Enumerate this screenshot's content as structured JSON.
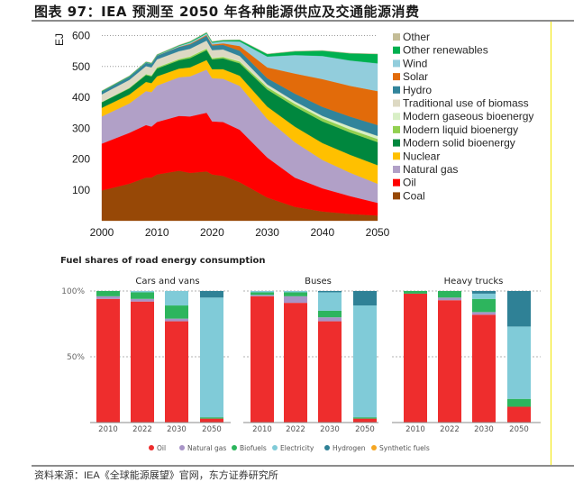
{
  "page": {
    "title": "图表 97：IEA 预测至 2050 年各种能源供应及交通能源消费",
    "source": "资料来源：IEA《全球能源展望》官网，东方证券研究所"
  },
  "chart_data": [
    {
      "type": "area",
      "stacked": true,
      "title": "",
      "xlabel": "",
      "ylabel": "EJ",
      "xlim": [
        2000,
        2050
      ],
      "ylim": [
        0,
        620
      ],
      "yticks": [
        100,
        200,
        300,
        400,
        500,
        600
      ],
      "xticks": [
        2000,
        2010,
        2020,
        2030,
        2040,
        2050
      ],
      "grid": "dotted horizontal at 500 and 600",
      "legend_position": "right",
      "x": [
        2000,
        2005,
        2008,
        2009,
        2010,
        2014,
        2016,
        2019,
        2020,
        2022,
        2025,
        2030,
        2035,
        2040,
        2045,
        2050
      ],
      "series": [
        {
          "name": "Coal",
          "color": "#974806",
          "values": [
            98,
            120,
            140,
            140,
            150,
            162,
            155,
            160,
            150,
            145,
            125,
            75,
            45,
            30,
            22,
            17
          ]
        },
        {
          "name": "Oil",
          "color": "#ff0000",
          "values": [
            152,
            165,
            170,
            165,
            170,
            178,
            183,
            190,
            172,
            175,
            170,
            130,
            95,
            75,
            58,
            41
          ]
        },
        {
          "name": "Natural gas",
          "color": "#b1a0c7",
          "values": [
            88,
            95,
            110,
            112,
            118,
            125,
            130,
            140,
            140,
            140,
            142,
            125,
            115,
            92,
            76,
            62
          ]
        },
        {
          "name": "Nuclear",
          "color": "#ffc000",
          "values": [
            28,
            29,
            30,
            29,
            30,
            28,
            29,
            31,
            29,
            31,
            33,
            40,
            50,
            55,
            58,
            60
          ]
        },
        {
          "name": "Modern solid bioenergy",
          "color": "#00873e",
          "values": [
            18,
            20,
            22,
            22,
            25,
            27,
            30,
            32,
            32,
            35,
            40,
            55,
            65,
            70,
            72,
            75
          ]
        },
        {
          "name": "Modern liquid bioenergy",
          "color": "#92d050",
          "values": [
            1,
            2,
            3,
            3,
            4,
            4,
            5,
            5,
            4,
            5,
            6,
            8,
            9,
            10,
            10,
            10
          ]
        },
        {
          "name": "Modern gaseous bioenergy",
          "color": "#d8efc6",
          "values": [
            0.5,
            0.5,
            1,
            1,
            1,
            1.5,
            1.5,
            2,
            2,
            2,
            3,
            4,
            6,
            7,
            9,
            10
          ]
        },
        {
          "name": "Traditional use of biomass",
          "color": "#ddd9c3",
          "values": [
            24,
            25,
            25,
            25,
            25,
            24,
            24,
            24,
            24,
            22,
            15,
            5,
            2,
            1,
            0.5,
            0
          ]
        },
        {
          "name": "Hydro",
          "color": "#31849b",
          "values": [
            9,
            10,
            11,
            11,
            12,
            13,
            14,
            15,
            15,
            15,
            17,
            20,
            25,
            29,
            32,
            35
          ]
        },
        {
          "name": "Solar",
          "color": "#e26b0a",
          "values": [
            0,
            0,
            0,
            0,
            0.1,
            1,
            2,
            3,
            3,
            5,
            15,
            35,
            65,
            90,
            100,
            110
          ]
        },
        {
          "name": "Wind",
          "color": "#92cddc",
          "values": [
            0,
            0.5,
            1,
            1,
            1,
            3,
            4,
            5,
            6,
            7,
            15,
            35,
            60,
            75,
            82,
            90
          ]
        },
        {
          "name": "Other renewables",
          "color": "#00b050",
          "values": [
            2,
            2,
            2,
            2,
            2,
            2,
            3,
            3,
            3,
            3,
            5,
            8,
            12,
            17,
            23,
            30
          ]
        },
        {
          "name": "Other",
          "color": "#c4bd97",
          "values": [
            1,
            1,
            1,
            1,
            1,
            1,
            1,
            1,
            1,
            1,
            1,
            1,
            1,
            1,
            1,
            1
          ]
        }
      ],
      "legend_order": [
        "Other",
        "Other renewables",
        "Wind",
        "Solar",
        "Hydro",
        "Traditional use of biomass",
        "Modern gaseous bioenergy",
        "Modern liquid bioenergy",
        "Modern solid bioenergy",
        "Nuclear",
        "Natural gas",
        "Oil",
        "Coal"
      ]
    },
    {
      "type": "bar",
      "stacked": true,
      "title": "Fuel shares of road energy consumption",
      "ylabel": "",
      "ylim": [
        0,
        100
      ],
      "yticks": [
        "100%",
        "50%"
      ],
      "legend_position": "bottom",
      "stack_order": [
        "Oil",
        "Natural gas",
        "Biofuels",
        "Electricity",
        "Hydrogen",
        "Synthetic fuels"
      ],
      "colors": {
        "Oil": "#ee2d2d",
        "Natural gas": "#a894c7",
        "Biofuels": "#2db55d",
        "Electricity": "#80cbd8",
        "Hydrogen": "#2f8196",
        "Synthetic fuels": "#f5a623"
      },
      "panels": [
        {
          "name": "Cars and vans",
          "categories": [
            "2010",
            "2022",
            "2030",
            "2050"
          ],
          "series": [
            {
              "name": "Oil",
              "values": [
                94,
                92,
                77,
                3
              ]
            },
            {
              "name": "Natural gas",
              "values": [
                2,
                2,
                2,
                0
              ]
            },
            {
              "name": "Biofuels",
              "values": [
                4,
                5,
                10,
                1
              ]
            },
            {
              "name": "Electricity",
              "values": [
                0,
                1,
                11,
                91
              ]
            },
            {
              "name": "Hydrogen",
              "values": [
                0,
                0,
                0,
                5
              ]
            },
            {
              "name": "Synthetic fuels",
              "values": [
                0,
                0,
                0,
                0
              ]
            }
          ]
        },
        {
          "name": "Buses",
          "categories": [
            "2010",
            "2022",
            "2030",
            "2050"
          ],
          "series": [
            {
              "name": "Oil",
              "values": [
                96,
                91,
                77,
                3
              ]
            },
            {
              "name": "Natural gas",
              "values": [
                1,
                5,
                3,
                0
              ]
            },
            {
              "name": "Biofuels",
              "values": [
                2,
                3,
                5,
                1
              ]
            },
            {
              "name": "Electricity",
              "values": [
                1,
                1,
                14,
                85
              ]
            },
            {
              "name": "Hydrogen",
              "values": [
                0,
                0,
                1,
                11
              ]
            },
            {
              "name": "Synthetic fuels",
              "values": [
                0,
                0,
                0,
                0
              ]
            }
          ]
        },
        {
          "name": "Heavy trucks",
          "categories": [
            "2010",
            "2022",
            "2030",
            "2050"
          ],
          "series": [
            {
              "name": "Oil",
              "values": [
                98,
                93,
                82,
                12
              ]
            },
            {
              "name": "Natural gas",
              "values": [
                0,
                2,
                2,
                0
              ]
            },
            {
              "name": "Biofuels",
              "values": [
                2,
                5,
                10,
                6
              ]
            },
            {
              "name": "Electricity",
              "values": [
                0,
                0,
                4,
                55
              ]
            },
            {
              "name": "Hydrogen",
              "values": [
                0,
                0,
                2,
                27
              ]
            },
            {
              "name": "Synthetic fuels",
              "values": [
                0,
                0,
                0,
                0
              ]
            }
          ]
        }
      ],
      "legend": [
        "Oil",
        "Natural gas",
        "Biofuels",
        "Electricity",
        "Hydrogen",
        "Synthetic fuels"
      ]
    }
  ]
}
